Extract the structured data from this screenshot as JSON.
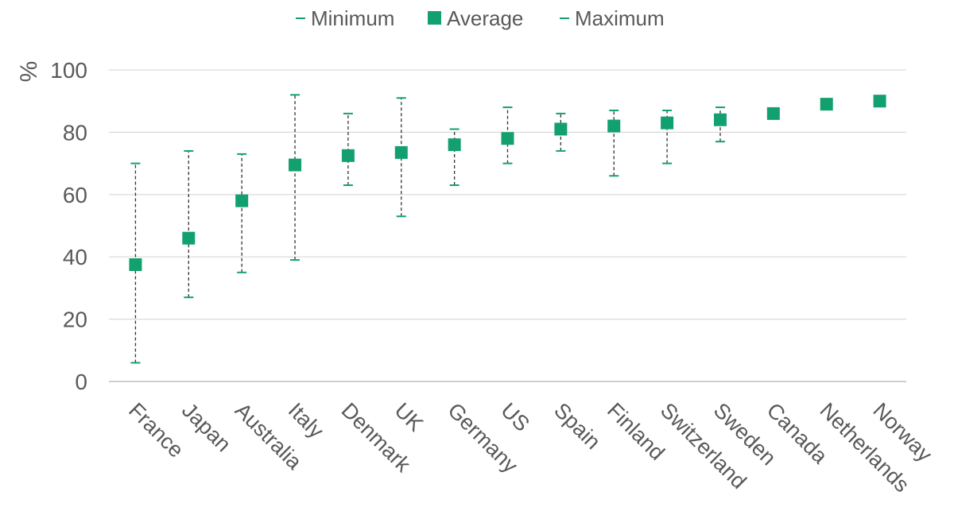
{
  "chart_data": {
    "type": "scatter",
    "ylabel": "%",
    "xlabel": "",
    "ylim": [
      0,
      100
    ],
    "yticks": [
      "0",
      "20",
      "40",
      "60",
      "80",
      "100"
    ],
    "grid": true,
    "legend_position": "top-center",
    "categories": [
      "France",
      "Japan",
      "Australia",
      "Italy",
      "Denmark",
      "UK",
      "Germany",
      "US",
      "Spain",
      "Finland",
      "Switzerland",
      "Sweden",
      "Canada",
      "Netherlands",
      "Norway"
    ],
    "series": [
      {
        "name": "Minimum",
        "values": [
          6,
          27,
          35,
          39,
          63,
          53,
          63,
          70,
          74,
          66,
          70,
          77,
          86,
          88,
          90
        ]
      },
      {
        "name": "Average",
        "values": [
          37.5,
          46,
          58,
          69.5,
          72.5,
          73.5,
          76,
          78,
          81,
          82,
          83,
          84,
          86,
          89,
          90
        ]
      },
      {
        "name": "Maximum",
        "values": [
          70,
          74,
          73,
          92,
          86,
          91,
          81,
          88,
          86,
          87,
          87,
          88,
          86,
          90,
          90
        ]
      }
    ],
    "colors": {
      "marker": "#13a06f",
      "errorbar": "#333333",
      "grid": "#d9d9d9",
      "text": "#595959"
    }
  }
}
